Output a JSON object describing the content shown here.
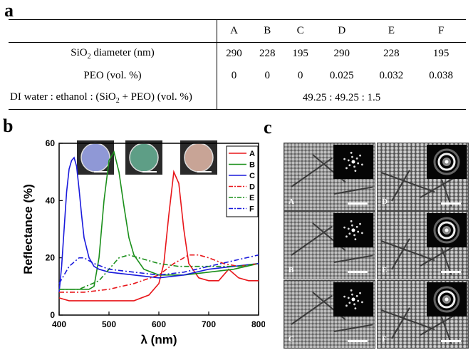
{
  "panel_labels": {
    "a": "a",
    "b": "b",
    "c": "c"
  },
  "table": {
    "columns": [
      "A",
      "B",
      "C",
      "D",
      "E",
      "F"
    ],
    "rows": [
      {
        "label_main": "SiO",
        "label_sub": "2",
        "label_rest": " diameter (nm)",
        "values": [
          "290",
          "228",
          "195",
          "290",
          "228",
          "195"
        ]
      },
      {
        "label": "PEO (vol. %)",
        "values": [
          "0",
          "0",
          "0",
          "0.025",
          "0.032",
          "0.038"
        ]
      }
    ],
    "last_row": {
      "label_a": "DI water : ethanol : (SiO",
      "label_sub": "2",
      "label_b": " + PEO) (vol. %)",
      "value": "49.25 : 49.25 : 1.5"
    }
  },
  "chart_data": {
    "type": "line",
    "xlabel": "λ (nm)",
    "ylabel": "Reflectance (%)",
    "xlim": [
      400,
      800
    ],
    "ylim": [
      0,
      60
    ],
    "xticks": [
      400,
      500,
      600,
      700,
      800
    ],
    "yticks": [
      0,
      20,
      40,
      60
    ],
    "series": [
      {
        "name": "A",
        "color": "#e8161a",
        "dash": "solid",
        "x": [
          400,
          420,
          450,
          500,
          550,
          580,
          600,
          610,
          620,
          630,
          640,
          650,
          660,
          680,
          700,
          720,
          740,
          760,
          780,
          800
        ],
        "y": [
          6,
          5,
          5,
          5,
          5,
          7,
          11,
          18,
          35,
          50,
          46,
          30,
          18,
          13,
          12,
          12,
          16,
          13,
          12,
          12
        ]
      },
      {
        "name": "B",
        "color": "#1a8f1a",
        "dash": "solid",
        "x": [
          400,
          420,
          440,
          460,
          470,
          480,
          490,
          500,
          510,
          520,
          530,
          540,
          550,
          570,
          600,
          650,
          700,
          750,
          800
        ],
        "y": [
          9,
          9,
          9,
          9,
          10,
          20,
          40,
          54,
          57,
          50,
          38,
          27,
          21,
          16,
          14,
          14,
          15,
          16,
          18
        ]
      },
      {
        "name": "C",
        "color": "#1a1adc",
        "dash": "solid",
        "x": [
          400,
          405,
          410,
          415,
          420,
          425,
          430,
          435,
          440,
          445,
          450,
          460,
          470,
          480,
          500,
          550,
          600,
          650,
          700,
          750,
          800
        ],
        "y": [
          8,
          17,
          30,
          43,
          51,
          54,
          55,
          52,
          44,
          35,
          27,
          20,
          17,
          16,
          15,
          14,
          13,
          14,
          16,
          17,
          18
        ]
      },
      {
        "name": "D",
        "color": "#e8161a",
        "dash": "dashdot",
        "x": [
          400,
          450,
          500,
          550,
          600,
          630,
          660,
          680,
          700,
          730,
          760,
          800
        ],
        "y": [
          8,
          8,
          9,
          11,
          14,
          18,
          21,
          21,
          20,
          18,
          17,
          18
        ]
      },
      {
        "name": "E",
        "color": "#1a8f1a",
        "dash": "dashdot",
        "x": [
          400,
          440,
          480,
          500,
          520,
          540,
          560,
          580,
          600,
          640,
          680,
          720,
          760,
          800
        ],
        "y": [
          9,
          9,
          12,
          16,
          20,
          21,
          20,
          19,
          18,
          17,
          17,
          17,
          17,
          18
        ]
      },
      {
        "name": "F",
        "color": "#1a1adc",
        "dash": "dashdot",
        "x": [
          400,
          420,
          440,
          450,
          470,
          500,
          550,
          600,
          650,
          700,
          750,
          800
        ],
        "y": [
          11,
          17,
          20,
          20,
          18,
          16,
          15,
          14,
          15,
          17,
          19,
          21
        ]
      }
    ]
  },
  "sem_panels": [
    {
      "tag": "A",
      "fft": "hex-spots"
    },
    {
      "tag": "D",
      "fft": "ring"
    },
    {
      "tag": "B",
      "fft": "hex-spots"
    },
    {
      "tag": "E",
      "fft": "ring"
    },
    {
      "tag": "C",
      "fft": "hex-spots"
    },
    {
      "tag": "F",
      "fft": "ring"
    }
  ]
}
